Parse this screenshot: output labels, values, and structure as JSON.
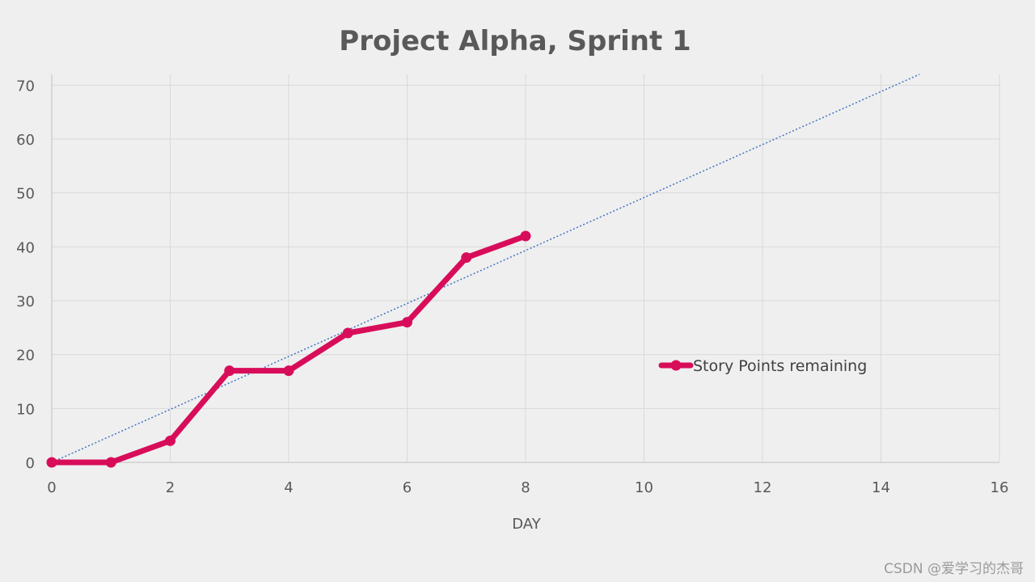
{
  "chart_data": {
    "type": "line",
    "title": "Project Alpha, Sprint 1",
    "xlabel": "DAY",
    "ylabel": "",
    "xlim": [
      0,
      16
    ],
    "ylim": [
      0,
      72
    ],
    "x_ticks": [
      0,
      2,
      4,
      6,
      8,
      10,
      12,
      14,
      16
    ],
    "y_ticks": [
      0,
      10,
      20,
      30,
      40,
      50,
      60,
      70
    ],
    "grid": true,
    "legend_position": "right",
    "series": [
      {
        "name": "Story Points remaining",
        "color": "#d80d5a",
        "style": "line-with-markers",
        "points": [
          [
            0,
            0
          ],
          [
            1,
            0
          ],
          [
            2,
            4
          ],
          [
            3,
            17
          ],
          [
            4,
            17
          ],
          [
            5,
            24
          ],
          [
            6,
            26
          ],
          [
            7,
            38
          ],
          [
            8,
            42
          ]
        ]
      }
    ],
    "trendline": {
      "style": "dotted",
      "color": "#4472c4",
      "points": [
        [
          0,
          0
        ],
        [
          14.65,
          72
        ]
      ]
    }
  },
  "watermark": "CSDN @爱学习的杰哥"
}
